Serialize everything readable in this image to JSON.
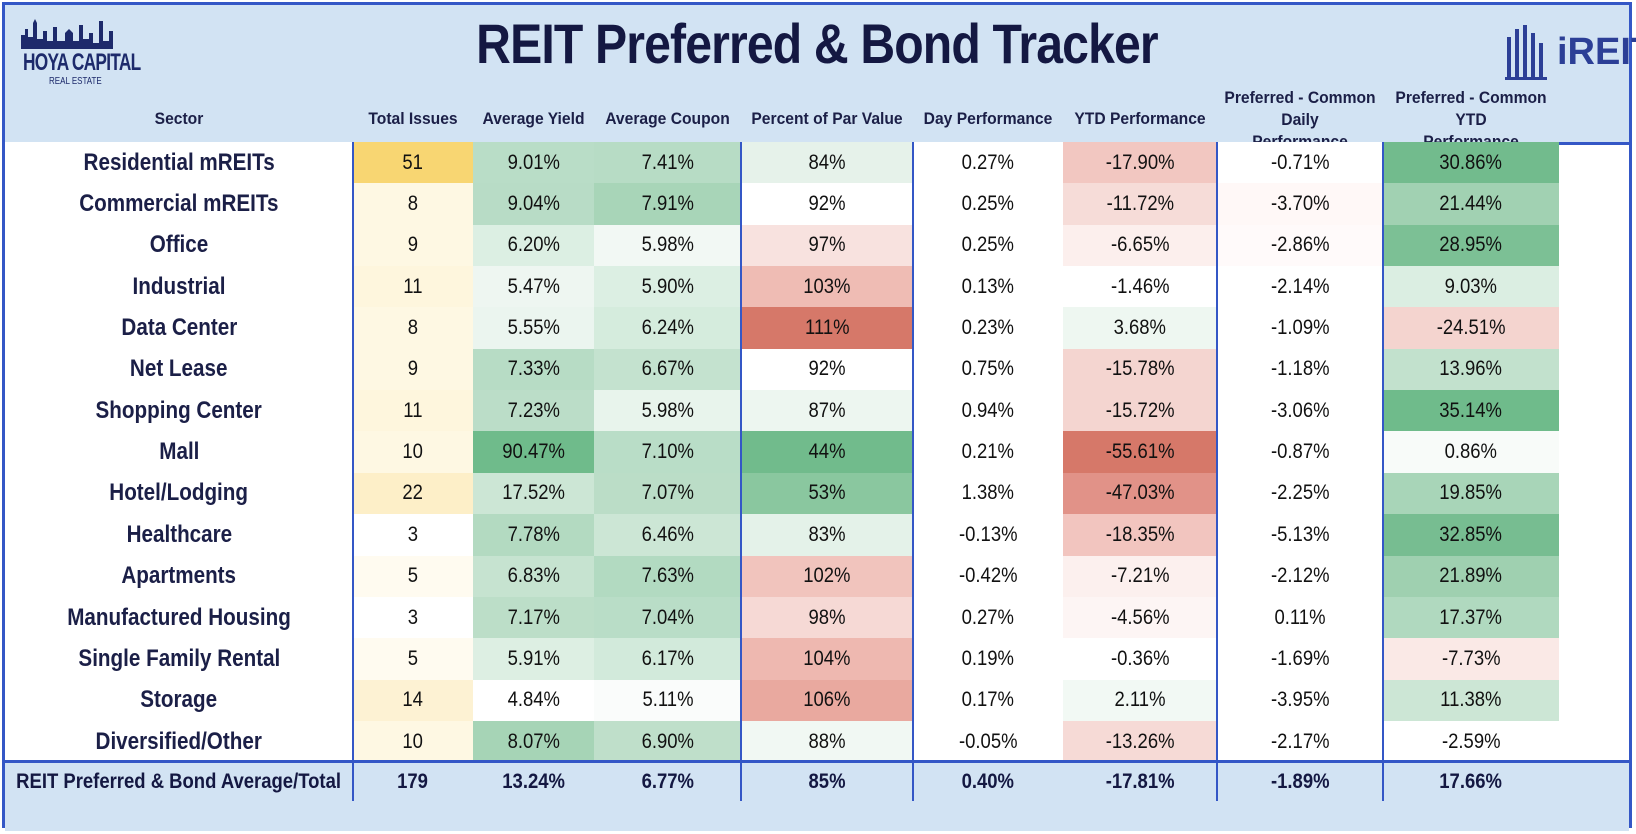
{
  "title": "REIT Preferred & Bond Tracker",
  "logos": {
    "left_line1": "HOYA CAPITAL",
    "left_line2": "REAL ESTATE",
    "right": "iREIT"
  },
  "colors": {
    "frame": "#3457c6",
    "header_bg": "#d2e3f3",
    "green_scale": "#6fbb8b",
    "red_scale": "#d67869",
    "yellow_scale": "#f8d672"
  },
  "chart_data": {
    "type": "table",
    "columns": [
      "Sector",
      "Total Issues",
      "Average Yield",
      "Average Coupon",
      "Percent of Par Value",
      "Day Performance",
      "YTD Performance",
      "Preferred - Common Daily Performance",
      "Preferred - Common YTD Performance"
    ],
    "rows": [
      [
        "Residential mREITs",
        "51",
        "9.01%",
        "7.41%",
        "84%",
        "0.27%",
        "-17.90%",
        "-0.71%",
        "30.86%"
      ],
      [
        "Commercial mREITs",
        "8",
        "9.04%",
        "7.91%",
        "92%",
        "0.25%",
        "-11.72%",
        "-3.70%",
        "21.44%"
      ],
      [
        "Office",
        "9",
        "6.20%",
        "5.98%",
        "97%",
        "0.25%",
        "-6.65%",
        "-2.86%",
        "28.95%"
      ],
      [
        "Industrial",
        "11",
        "5.47%",
        "5.90%",
        "103%",
        "0.13%",
        "-1.46%",
        "-2.14%",
        "9.03%"
      ],
      [
        "Data Center",
        "8",
        "5.55%",
        "6.24%",
        "111%",
        "0.23%",
        "3.68%",
        "-1.09%",
        "-24.51%"
      ],
      [
        "Net Lease",
        "9",
        "7.33%",
        "6.67%",
        "92%",
        "0.75%",
        "-15.78%",
        "-1.18%",
        "13.96%"
      ],
      [
        "Shopping Center",
        "11",
        "7.23%",
        "5.98%",
        "87%",
        "0.94%",
        "-15.72%",
        "-3.06%",
        "35.14%"
      ],
      [
        "Mall",
        "10",
        "90.47%",
        "7.10%",
        "44%",
        "0.21%",
        "-55.61%",
        "-0.87%",
        "0.86%"
      ],
      [
        "Hotel/Lodging",
        "22",
        "17.52%",
        "7.07%",
        "53%",
        "1.38%",
        "-47.03%",
        "-2.25%",
        "19.85%"
      ],
      [
        "Healthcare",
        "3",
        "7.78%",
        "6.46%",
        "83%",
        "-0.13%",
        "-18.35%",
        "-5.13%",
        "32.85%"
      ],
      [
        "Apartments",
        "5",
        "6.83%",
        "7.63%",
        "102%",
        "-0.42%",
        "-7.21%",
        "-2.12%",
        "21.89%"
      ],
      [
        "Manufactured Housing",
        "3",
        "7.17%",
        "7.04%",
        "98%",
        "0.27%",
        "-4.56%",
        "0.11%",
        "17.37%"
      ],
      [
        "Single Family Rental",
        "5",
        "5.91%",
        "6.17%",
        "104%",
        "0.19%",
        "-0.36%",
        "-1.69%",
        "-7.73%"
      ],
      [
        "Storage",
        "14",
        "4.84%",
        "5.11%",
        "106%",
        "0.17%",
        "2.11%",
        "-3.95%",
        "11.38%"
      ],
      [
        "Diversified/Other",
        "10",
        "8.07%",
        "6.90%",
        "88%",
        "-0.05%",
        "-13.26%",
        "-2.17%",
        "-2.59%"
      ]
    ],
    "cell_colors": [
      [
        "#fff",
        "#f8d672",
        "#b9ddc7",
        "#b7dcc5",
        "#e6f2ea",
        "#fff",
        "#f2c7c1",
        "#fff",
        "#72bb8d"
      ],
      [
        "#fff",
        "#fef8e3",
        "#b8dcc6",
        "#a8d5b8",
        "#fff",
        "#fff",
        "#f6dcd8",
        "#fff8f7",
        "#a1d1b2"
      ],
      [
        "#fff",
        "#fef8e3",
        "#dcefe3",
        "#f2f8f4",
        "#f8e2df",
        "#fff",
        "#fcefed",
        "#fffafa",
        "#7cc095"
      ],
      [
        "#fff",
        "#fef6dd",
        "#eef6f1",
        "#dcefe3",
        "#efbcb4",
        "#fff",
        "#fff",
        "#fff",
        "#dbeee2"
      ],
      [
        "#fff",
        "#fef8e3",
        "#ebf5ef",
        "#d5ecdd",
        "#d67869",
        "#fff",
        "#eef7f1",
        "#fff",
        "#f4d4cf"
      ],
      [
        "#fff",
        "#fef8e3",
        "#b7dcc5",
        "#c4e2cf",
        "#fff",
        "#fff",
        "#f4d5d0",
        "#fff",
        "#c2e1cd"
      ],
      [
        "#fff",
        "#fef6dd",
        "#bbddc8",
        "#e8f4ec",
        "#edf6f0",
        "#fff",
        "#f4d5d0",
        "#fff",
        "#6fbb8b"
      ],
      [
        "#fff",
        "#fef8e3",
        "#6fbb8b",
        "#b9ddc7",
        "#71bb8c",
        "#fff",
        "#d67869",
        "#fff",
        "#f8fbf9"
      ],
      [
        "#fff",
        "#fdefc8",
        "#cce6d5",
        "#bbddc7",
        "#8ac79f",
        "#fff",
        "#e19288",
        "#fff",
        "#a8d5b8"
      ],
      [
        "#fff",
        "#fff",
        "#b3dac1",
        "#cce6d5",
        "#e4f2e9",
        "#fff",
        "#f2c5bf",
        "#fff",
        "#77bd91"
      ],
      [
        "#fff",
        "#fffbf0",
        "#c6e3d0",
        "#b2dac1",
        "#f1c4bd",
        "#fff",
        "#fcf0ee",
        "#fff",
        "#9fd0b0"
      ],
      [
        "#fff",
        "#fff",
        "#bcdec8",
        "#b9ddc7",
        "#f6d9d5",
        "#fff",
        "#fdf5f4",
        "#fff",
        "#b0d9bf"
      ],
      [
        "#fff",
        "#fffbf0",
        "#ddefe3",
        "#d2eadb",
        "#eeb8b0",
        "#fff",
        "#fff",
        "#fff",
        "#fae9e6"
      ],
      [
        "#fff",
        "#fdf2d3",
        "#fff",
        "#fafcfb",
        "#e9a99f",
        "#fff",
        "#f2f9f4",
        "#fff",
        "#cce6d5"
      ],
      [
        "#fff",
        "#fef8e3",
        "#a6d4b6",
        "#bfdfca",
        "#f1f8f3",
        "#fff",
        "#f6dad6",
        "#fff",
        "#fff"
      ]
    ],
    "footer": [
      "REIT Preferred & Bond Average/Total",
      "179",
      "13.24%",
      "6.77%",
      "85%",
      "0.40%",
      "-17.81%",
      "-1.89%",
      "17.66%"
    ]
  }
}
